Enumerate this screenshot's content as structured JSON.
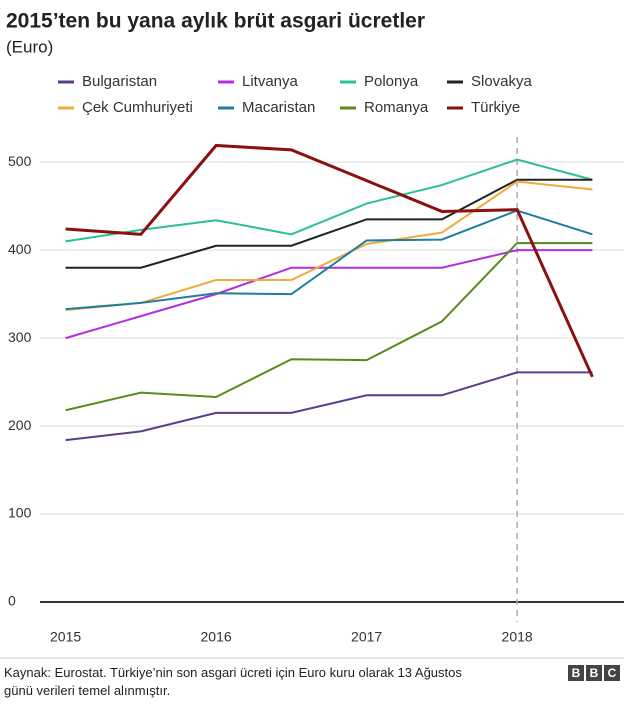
{
  "chart_data": {
    "type": "line",
    "title": "2015’ten bu yana aylık brüt asgari ücretler",
    "subtitle": "(Euro)",
    "x": [
      2015,
      2015.5,
      2016,
      2016.5,
      2017,
      2017.5,
      2018,
      2018.5
    ],
    "series": [
      {
        "name": "Bulgaristan",
        "color": "#5b3d8a",
        "values": [
          184,
          194,
          215,
          215,
          235,
          235,
          261,
          261
        ]
      },
      {
        "name": "Litvanya",
        "color": "#b42ee0",
        "values": [
          300,
          325,
          350,
          380,
          380,
          380,
          400,
          400
        ]
      },
      {
        "name": "Polonya",
        "color": "#2bbf9a",
        "values": [
          410,
          423,
          434,
          418,
          453,
          474,
          503,
          480
        ]
      },
      {
        "name": "Slovakya",
        "color": "#222222",
        "values": [
          380,
          380,
          405,
          405,
          435,
          435,
          480,
          480
        ]
      },
      {
        "name": "Çek Cumhuriyeti",
        "color": "#f2a93b",
        "values": [
          332,
          340,
          366,
          366,
          407,
          420,
          478,
          469
        ]
      },
      {
        "name": "Macaristan",
        "color": "#1f7e9e",
        "values": [
          333,
          340,
          351,
          350,
          411,
          412,
          445,
          418
        ]
      },
      {
        "name": "Romanya",
        "color": "#5a8a1c",
        "values": [
          218,
          238,
          233,
          276,
          275,
          319,
          408,
          408
        ]
      },
      {
        "name": "Türkiye",
        "color": "#8b1010",
        "values": [
          424,
          418,
          519,
          514,
          479,
          444,
          446,
          256
        ]
      }
    ],
    "xlim": [
      2014.83,
      2018.71
    ],
    "xticks": [
      2015,
      2016,
      2017,
      2018
    ],
    "ylim": [
      0,
      540
    ],
    "yticks": [
      0,
      100,
      200,
      300,
      400,
      500
    ],
    "grid": true,
    "vline": 2018,
    "source": "Kaynak: Eurostat. Türkiye’nin son asgari ücreti için Euro kuru olarak 13 Ağustos günü verileri temel alınmıştır.",
    "logo": [
      "B",
      "B",
      "C"
    ]
  }
}
